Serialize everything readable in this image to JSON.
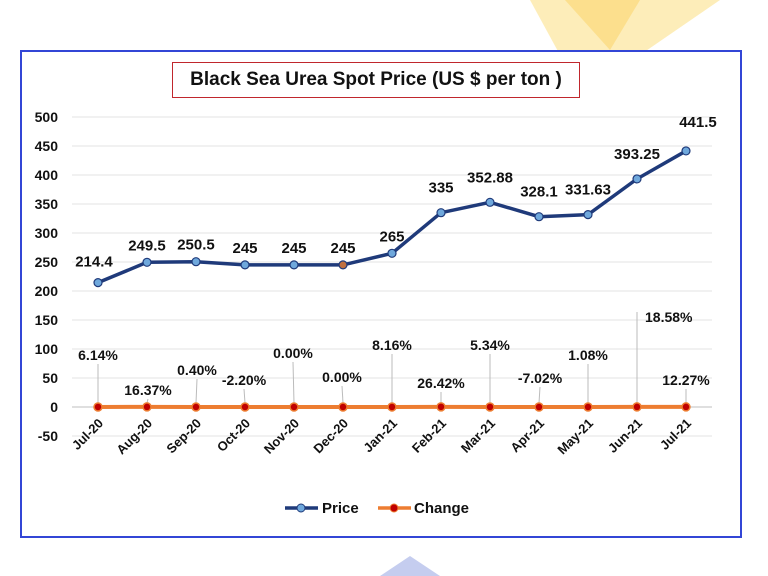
{
  "chart_data": {
    "type": "line",
    "title": "Black Sea Urea Spot Price (US $ per ton )",
    "categories": [
      "Jul-20",
      "Aug-20",
      "Sep-20",
      "Oct-20",
      "Nov-20",
      "Dec-20",
      "Jan-21",
      "Feb-21",
      "Mar-21",
      "Apr-21",
      "May-21",
      "Jun-21",
      "Jul-21"
    ],
    "ylim": [
      -50,
      500
    ],
    "yticks": [
      -50,
      0,
      50,
      100,
      150,
      200,
      250,
      300,
      350,
      400,
      450,
      500
    ],
    "grid": true,
    "legend_position": "bottom",
    "series": [
      {
        "name": "Price",
        "color": "#1f3a7a",
        "marker_color": "#6fa8dc",
        "values": [
          214.4,
          249.5,
          250.5,
          245,
          245,
          245,
          265,
          335,
          352.88,
          328.1,
          331.63,
          393.25,
          441.5
        ],
        "labels": [
          "214.4",
          "249.5",
          "250.5",
          "245",
          "245",
          "245",
          "265",
          "335",
          "352.88",
          "328.1",
          "331.63",
          "393.25",
          "441.5"
        ]
      },
      {
        "name": "Change",
        "color": "#ed7d31",
        "marker_color": "#c00000",
        "values": [
          0.0614,
          0.1637,
          0.004,
          -0.022,
          0,
          0,
          0.0816,
          0.2642,
          0.0534,
          -0.0702,
          0.0108,
          0.1858,
          0.1227
        ],
        "labels": [
          "6.14%",
          "16.37%",
          "0.40%",
          "-2.20%",
          "0.00%",
          "0.00%",
          "8.16%",
          "26.42%",
          "5.34%",
          "-7.02%",
          "1.08%",
          "18.58%",
          "12.27%"
        ]
      }
    ]
  }
}
